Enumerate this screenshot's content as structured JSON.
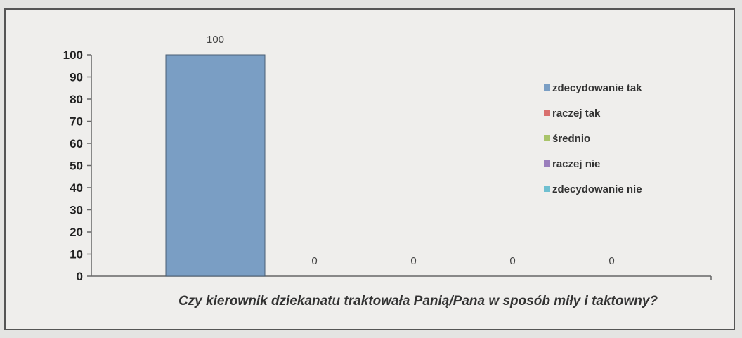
{
  "chart_data": {
    "type": "bar",
    "title": "",
    "xlabel": "Czy kierownik dziekanatu traktowała Panią/Pana w sposób miły i taktowny?",
    "ylabel": "",
    "ylim": [
      0,
      100
    ],
    "yticks": [
      0,
      10,
      20,
      30,
      40,
      50,
      60,
      70,
      80,
      90,
      100
    ],
    "grid": false,
    "legend_position": "right",
    "series": [
      {
        "name": "zdecydowanie tak",
        "values": [
          100
        ],
        "color": "#7a9ec4"
      },
      {
        "name": "raczej tak",
        "values": [
          0
        ],
        "color": "#d9706e"
      },
      {
        "name": "średnio",
        "values": [
          0
        ],
        "color": "#a9c46a"
      },
      {
        "name": "raczej nie",
        "values": [
          0
        ],
        "color": "#9a7ebc"
      },
      {
        "name": "zdecydowanie nie",
        "values": [
          0
        ],
        "color": "#6fbfd0"
      }
    ]
  }
}
